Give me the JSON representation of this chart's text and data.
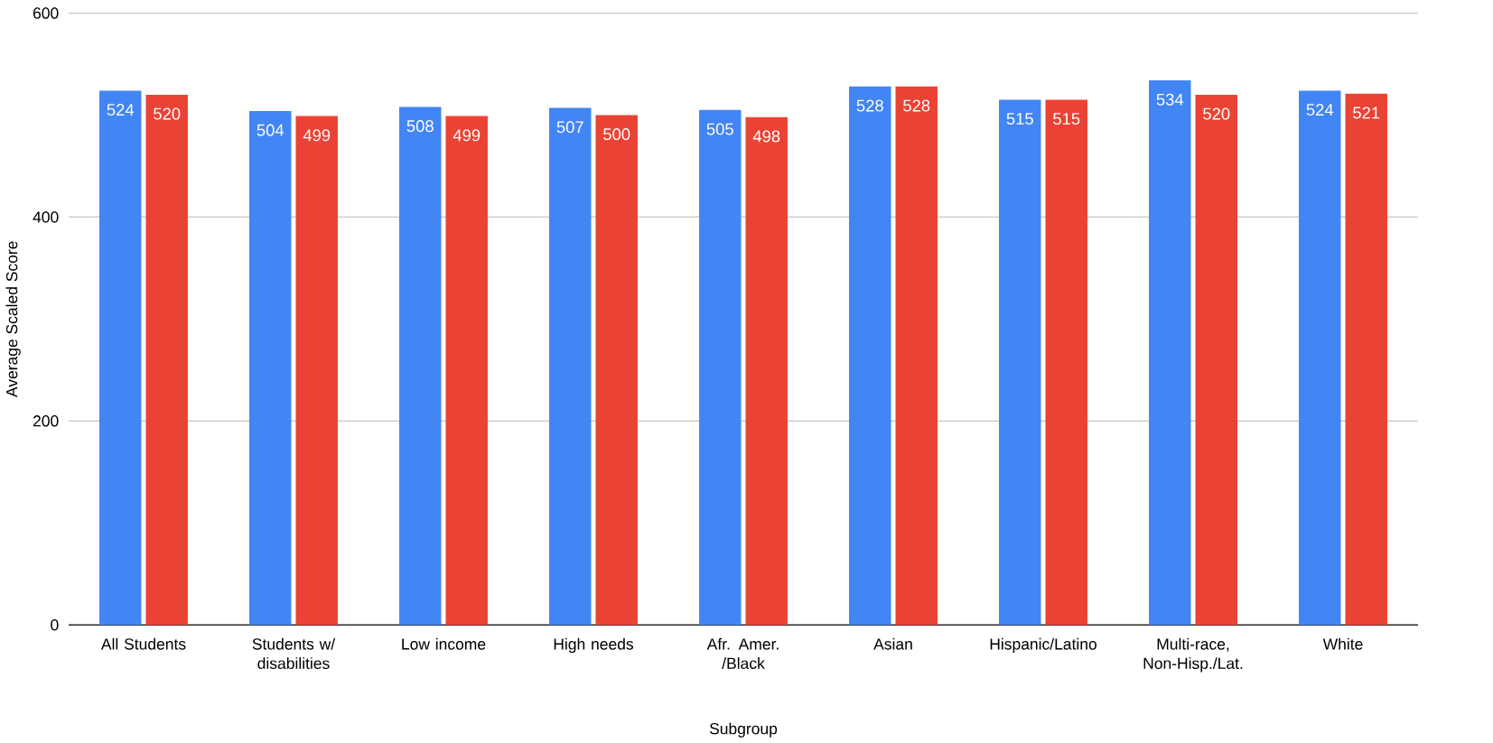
{
  "chart_data": {
    "type": "bar",
    "xlabel": "Subgroup",
    "ylabel": "Average Scaled Score",
    "categories": [
      "All Students",
      "Students w/ disabilities",
      "Low income",
      "High needs",
      "Afr. Amer. /Black",
      "Asian",
      "Hispanic/Latino",
      "Multi-race, Non-Hisp./Lat.",
      "White"
    ],
    "series": [
      {
        "color": "#4285f4",
        "values": [
          524,
          504,
          508,
          507,
          505,
          528,
          515,
          534,
          524
        ]
      },
      {
        "color": "#ea4335",
        "values": [
          520,
          499,
          499,
          500,
          498,
          528,
          515,
          520,
          521
        ]
      }
    ],
    "ylim": [
      0,
      600
    ],
    "yticks": [
      0,
      200,
      400,
      600
    ],
    "grid": "y",
    "data_labels": true
  }
}
